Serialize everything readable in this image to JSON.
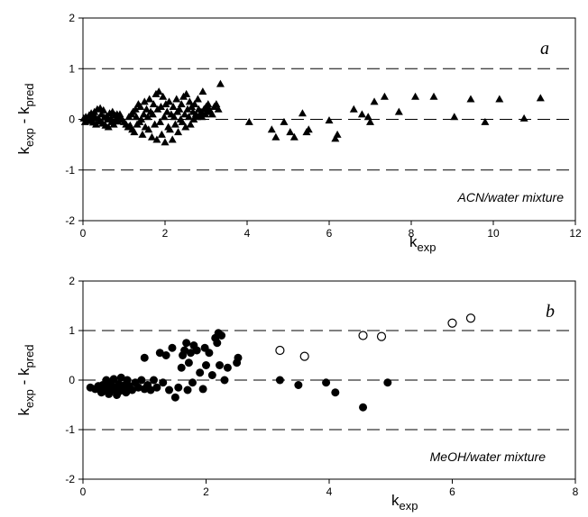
{
  "chart_data": [
    {
      "type": "scatter",
      "panel_label": "a",
      "annotation": "ACN/water mixture",
      "xlabel": {
        "main": "k",
        "sub": "exp"
      },
      "ylabel": {
        "parts": [
          {
            "main": "k",
            "sub": "exp"
          },
          {
            "main": " - k",
            "sub": "pred"
          }
        ]
      },
      "xlim": [
        0,
        12
      ],
      "ylim": [
        -2,
        2
      ],
      "xticks": [
        0,
        2,
        4,
        6,
        8,
        10,
        12
      ],
      "yticks": [
        -2,
        -1,
        0,
        1,
        2
      ],
      "reference_lines": [
        -1,
        0,
        1
      ],
      "grid": false,
      "series": [
        {
          "marker": "filled-triangle",
          "points": [
            [
              0.02,
              0.02
            ],
            [
              0.05,
              -0.05
            ],
            [
              0.07,
              0.05
            ],
            [
              0.1,
              0.0
            ],
            [
              0.12,
              -0.03
            ],
            [
              0.15,
              0.08
            ],
            [
              0.18,
              -0.02
            ],
            [
              0.2,
              0.12
            ],
            [
              0.22,
              0.03
            ],
            [
              0.25,
              -0.06
            ],
            [
              0.28,
              0.15
            ],
            [
              0.3,
              0.05
            ],
            [
              0.32,
              -0.1
            ],
            [
              0.35,
              0.2
            ],
            [
              0.38,
              0.02
            ],
            [
              0.4,
              -0.04
            ],
            [
              0.42,
              0.22
            ],
            [
              0.45,
              0.1
            ],
            [
              0.48,
              -0.08
            ],
            [
              0.5,
              0.18
            ],
            [
              0.52,
              0.04
            ],
            [
              0.55,
              -0.12
            ],
            [
              0.58,
              0.06
            ],
            [
              0.6,
              0.0
            ],
            [
              0.62,
              -0.15
            ],
            [
              0.65,
              0.12
            ],
            [
              0.68,
              0.02
            ],
            [
              0.7,
              -0.05
            ],
            [
              0.72,
              0.15
            ],
            [
              0.75,
              -0.1
            ],
            [
              0.78,
              0.08
            ],
            [
              0.8,
              0.0
            ],
            [
              0.83,
              0.1
            ],
            [
              0.85,
              -0.04
            ],
            [
              0.88,
              0.05
            ],
            [
              0.9,
              0.1
            ],
            [
              0.95,
              0.0
            ],
            [
              1.0,
              -0.05
            ],
            [
              1.05,
              -0.1
            ],
            [
              1.1,
              -0.15
            ],
            [
              1.12,
              0.05
            ],
            [
              1.15,
              -0.12
            ],
            [
              1.18,
              0.1
            ],
            [
              1.2,
              -0.2
            ],
            [
              1.22,
              0.15
            ],
            [
              1.25,
              -0.25
            ],
            [
              1.28,
              0.2
            ],
            [
              1.3,
              0.05
            ],
            [
              1.32,
              -0.1
            ],
            [
              1.35,
              0.3
            ],
            [
              1.38,
              -0.05
            ],
            [
              1.4,
              0.25
            ],
            [
              1.42,
              0.0
            ],
            [
              1.45,
              -0.3
            ],
            [
              1.48,
              0.1
            ],
            [
              1.5,
              0.35
            ],
            [
              1.52,
              -0.15
            ],
            [
              1.55,
              0.2
            ],
            [
              1.58,
              0.05
            ],
            [
              1.6,
              -0.2
            ],
            [
              1.62,
              0.4
            ],
            [
              1.65,
              0.15
            ],
            [
              1.68,
              -0.35
            ],
            [
              1.7,
              0.1
            ],
            [
              1.72,
              0.3
            ],
            [
              1.75,
              -0.1
            ],
            [
              1.78,
              0.5
            ],
            [
              1.8,
              -0.4
            ],
            [
              1.82,
              0.2
            ],
            [
              1.85,
              0.55
            ],
            [
              1.88,
              -0.05
            ],
            [
              1.9,
              0.25
            ],
            [
              1.92,
              -0.3
            ],
            [
              1.95,
              0.45
            ],
            [
              1.98,
              0.05
            ],
            [
              2.0,
              -0.45
            ],
            [
              2.02,
              0.3
            ],
            [
              2.05,
              0.15
            ],
            [
              2.08,
              -0.15
            ],
            [
              2.1,
              0.35
            ],
            [
              2.12,
              -0.2
            ],
            [
              2.15,
              0.1
            ],
            [
              2.18,
              -0.4
            ],
            [
              2.2,
              0.25
            ],
            [
              2.22,
              0.05
            ],
            [
              2.25,
              -0.1
            ],
            [
              2.28,
              0.4
            ],
            [
              2.3,
              0.15
            ],
            [
              2.32,
              -0.25
            ],
            [
              2.35,
              0.2
            ],
            [
              2.38,
              0.0
            ],
            [
              2.4,
              0.3
            ],
            [
              2.42,
              -0.05
            ],
            [
              2.45,
              0.45
            ],
            [
              2.48,
              0.1
            ],
            [
              2.5,
              -0.15
            ],
            [
              2.52,
              0.5
            ],
            [
              2.55,
              0.2
            ],
            [
              2.58,
              0.05
            ],
            [
              2.6,
              0.35
            ],
            [
              2.62,
              -0.1
            ],
            [
              2.65,
              0.25
            ],
            [
              2.68,
              0.15
            ],
            [
              2.7,
              0.0
            ],
            [
              2.72,
              0.3
            ],
            [
              2.75,
              0.1
            ],
            [
              2.78,
              0.05
            ],
            [
              2.8,
              0.4
            ],
            [
              2.82,
              0.2
            ],
            [
              2.85,
              0.1
            ],
            [
              2.88,
              0.15
            ],
            [
              2.9,
              0.05
            ],
            [
              2.92,
              0.55
            ],
            [
              2.95,
              0.2
            ],
            [
              2.98,
              0.1
            ],
            [
              3.0,
              0.25
            ],
            [
              3.02,
              0.15
            ],
            [
              3.05,
              0.3
            ],
            [
              3.08,
              0.2
            ],
            [
              3.1,
              0.15
            ],
            [
              3.15,
              0.1
            ],
            [
              3.2,
              0.25
            ],
            [
              3.25,
              0.3
            ],
            [
              3.3,
              0.2
            ],
            [
              3.35,
              0.7
            ],
            [
              4.05,
              -0.05
            ],
            [
              4.6,
              -0.2
            ],
            [
              4.7,
              -0.35
            ],
            [
              4.9,
              -0.05
            ],
            [
              5.05,
              -0.25
            ],
            [
              5.15,
              -0.35
            ],
            [
              5.35,
              0.12
            ],
            [
              5.45,
              -0.25
            ],
            [
              5.5,
              -0.2
            ],
            [
              6.0,
              -0.02
            ],
            [
              6.15,
              -0.38
            ],
            [
              6.2,
              -0.3
            ],
            [
              6.6,
              0.2
            ],
            [
              6.8,
              0.1
            ],
            [
              6.95,
              0.05
            ],
            [
              7.0,
              -0.05
            ],
            [
              7.1,
              0.35
            ],
            [
              7.35,
              0.45
            ],
            [
              7.7,
              0.15
            ],
            [
              8.1,
              0.45
            ],
            [
              8.55,
              0.45
            ],
            [
              9.05,
              0.05
            ],
            [
              9.45,
              0.4
            ],
            [
              9.8,
              -0.05
            ],
            [
              10.15,
              0.4
            ],
            [
              10.75,
              0.02
            ],
            [
              11.15,
              0.42
            ]
          ]
        }
      ]
    },
    {
      "type": "scatter",
      "panel_label": "b",
      "annotation": "MeOH/water mixture",
      "xlabel": {
        "main": "k",
        "sub": "exp"
      },
      "ylabel": {
        "parts": [
          {
            "main": "k",
            "sub": "exp"
          },
          {
            "main": " - k",
            "sub": "pred"
          }
        ]
      },
      "xlim": [
        0,
        8
      ],
      "ylim": [
        -2,
        2
      ],
      "xticks": [
        0,
        2,
        4,
        6,
        8
      ],
      "yticks": [
        -2,
        -1,
        0,
        1,
        2
      ],
      "reference_lines": [
        -1,
        0,
        1
      ],
      "grid": false,
      "series": [
        {
          "marker": "filled-circle",
          "points": [
            [
              0.12,
              -0.15
            ],
            [
              0.2,
              -0.18
            ],
            [
              0.25,
              -0.12
            ],
            [
              0.3,
              -0.25
            ],
            [
              0.32,
              -0.1
            ],
            [
              0.35,
              -0.2
            ],
            [
              0.38,
              0.0
            ],
            [
              0.4,
              -0.15
            ],
            [
              0.42,
              -0.28
            ],
            [
              0.45,
              -0.05
            ],
            [
              0.48,
              -0.2
            ],
            [
              0.5,
              0.02
            ],
            [
              0.52,
              -0.15
            ],
            [
              0.55,
              -0.3
            ],
            [
              0.58,
              -0.08
            ],
            [
              0.6,
              -0.22
            ],
            [
              0.62,
              0.05
            ],
            [
              0.65,
              -0.18
            ],
            [
              0.68,
              -0.1
            ],
            [
              0.7,
              -0.25
            ],
            [
              0.72,
              0.0
            ],
            [
              0.75,
              -0.12
            ],
            [
              0.8,
              -0.2
            ],
            [
              0.85,
              -0.05
            ],
            [
              0.9,
              -0.15
            ],
            [
              0.95,
              0.0
            ],
            [
              1.0,
              -0.18
            ],
            [
              1.0,
              0.45
            ],
            [
              1.05,
              -0.1
            ],
            [
              1.1,
              -0.2
            ],
            [
              1.15,
              0.0
            ],
            [
              1.2,
              -0.15
            ],
            [
              1.25,
              0.55
            ],
            [
              1.3,
              -0.05
            ],
            [
              1.35,
              0.5
            ],
            [
              1.4,
              -0.2
            ],
            [
              1.45,
              0.65
            ],
            [
              1.5,
              -0.35
            ],
            [
              1.55,
              -0.15
            ],
            [
              1.6,
              0.25
            ],
            [
              1.62,
              0.5
            ],
            [
              1.65,
              0.6
            ],
            [
              1.68,
              0.75
            ],
            [
              1.7,
              -0.2
            ],
            [
              1.72,
              0.35
            ],
            [
              1.75,
              0.55
            ],
            [
              1.78,
              -0.05
            ],
            [
              1.8,
              0.7
            ],
            [
              1.85,
              0.6
            ],
            [
              1.9,
              0.15
            ],
            [
              1.95,
              -0.18
            ],
            [
              1.98,
              0.65
            ],
            [
              2.0,
              0.3
            ],
            [
              2.05,
              0.55
            ],
            [
              2.1,
              0.1
            ],
            [
              2.15,
              0.85
            ],
            [
              2.18,
              0.75
            ],
            [
              2.2,
              0.95
            ],
            [
              2.22,
              0.3
            ],
            [
              2.25,
              0.9
            ],
            [
              2.3,
              0.0
            ],
            [
              2.35,
              0.25
            ],
            [
              2.5,
              0.35
            ],
            [
              2.52,
              0.45
            ],
            [
              3.2,
              0.0
            ],
            [
              3.5,
              -0.1
            ],
            [
              3.95,
              -0.05
            ],
            [
              4.1,
              -0.25
            ],
            [
              4.55,
              -0.55
            ],
            [
              4.95,
              -0.05
            ]
          ]
        },
        {
          "marker": "open-circle",
          "points": [
            [
              3.2,
              0.6
            ],
            [
              3.6,
              0.48
            ],
            [
              4.55,
              0.9
            ],
            [
              4.85,
              0.88
            ],
            [
              6.0,
              1.15
            ],
            [
              6.3,
              1.25
            ]
          ]
        }
      ]
    }
  ]
}
